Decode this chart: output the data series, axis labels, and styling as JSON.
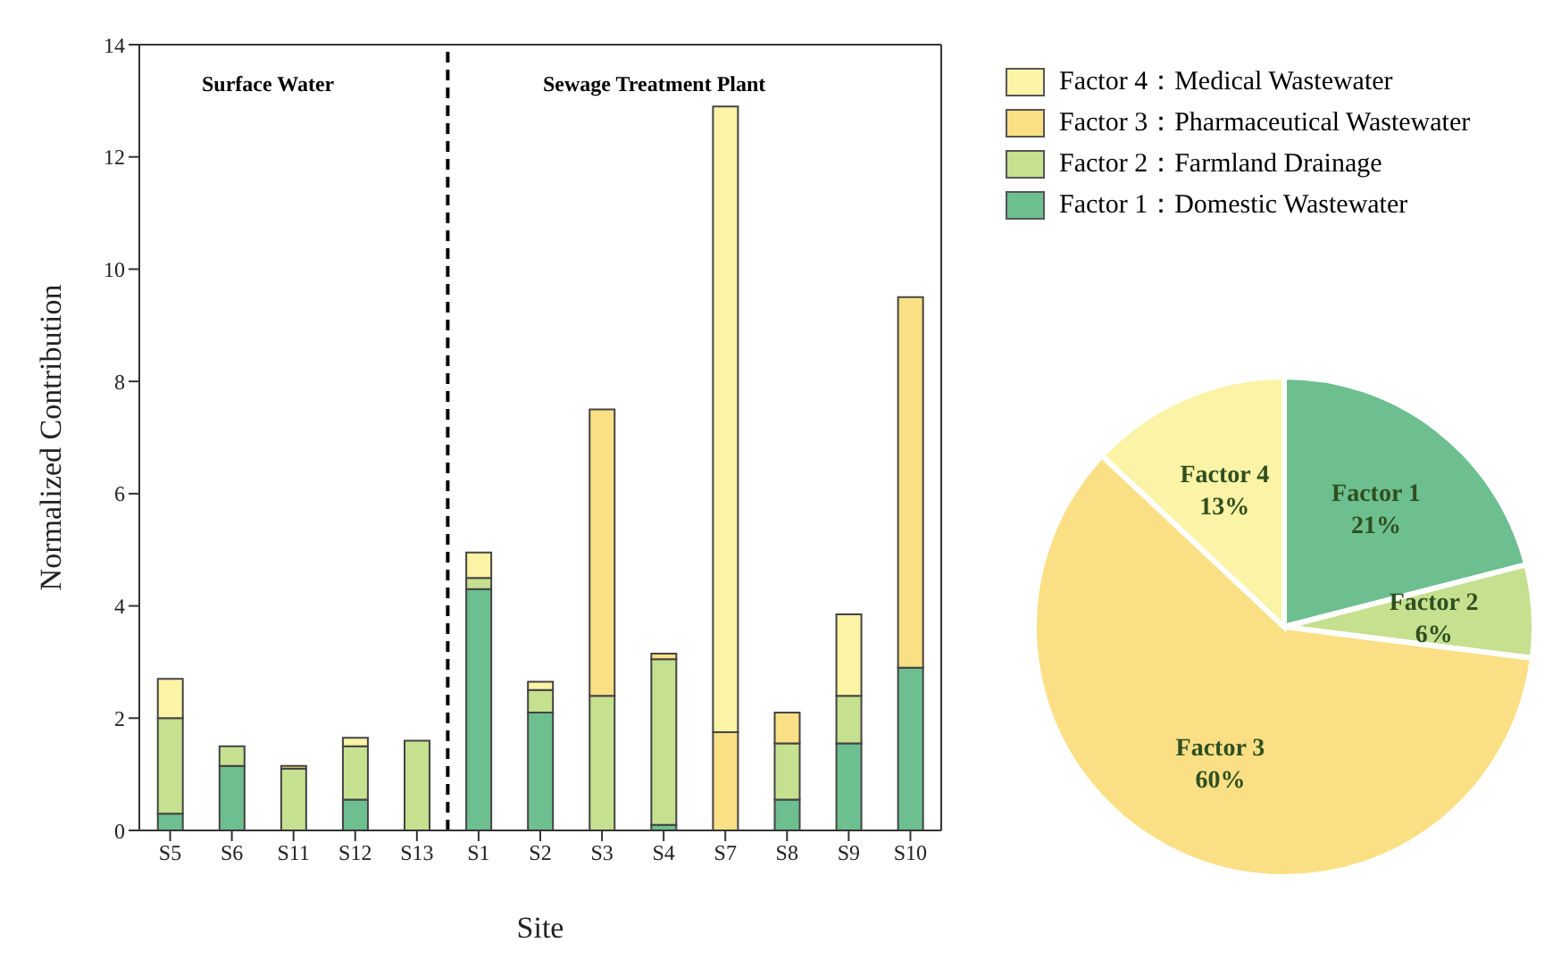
{
  "chart_data": [
    {
      "type": "bar",
      "stacked": true,
      "xlabel": "Site",
      "ylabel": "Normalized Contribution",
      "categories": [
        "S5",
        "S6",
        "S11",
        "S12",
        "S13",
        "S1",
        "S2",
        "S3",
        "S4",
        "S7",
        "S8",
        "S9",
        "S10"
      ],
      "ylim": [
        0,
        14
      ],
      "yticks": [
        0,
        2,
        4,
        6,
        8,
        10,
        12,
        14
      ],
      "legend": "right",
      "grid": false,
      "series": [
        {
          "name": "Factor 1：Domestic Wastewater",
          "color": "#6dbf8f",
          "values": [
            0.3,
            1.15,
            0,
            0.55,
            0,
            4.3,
            2.1,
            0,
            0.1,
            0,
            0.55,
            1.55,
            2.9
          ]
        },
        {
          "name": "Factor 2：Farmland Drainage",
          "color": "#c5e08f",
          "values": [
            1.7,
            0.35,
            1.1,
            0.95,
            1.6,
            0.2,
            0.4,
            2.4,
            2.95,
            0,
            1.0,
            0.85,
            0
          ]
        },
        {
          "name": "Factor 3：Pharmaceutical Wastewater",
          "color": "#fadf85",
          "values": [
            0,
            0,
            0.05,
            0,
            0,
            0,
            0,
            5.1,
            0.1,
            1.75,
            0.55,
            0,
            6.6
          ]
        },
        {
          "name": "Factor 4：Medical Wastewater",
          "color": "#fbf3a5",
          "values": [
            0.7,
            0,
            0,
            0.15,
            0,
            0.45,
            0.15,
            0,
            0,
            11.15,
            0,
            1.45,
            0
          ]
        }
      ],
      "annotations": [
        "Surface Water",
        "Sewage Treatment Plant"
      ]
    },
    {
      "type": "pie",
      "categories": [
        "Factor 1",
        "Factor 2",
        "Factor 3",
        "Factor 4"
      ],
      "values": [
        21,
        6,
        60,
        13
      ],
      "colors": [
        "#6dbf8f",
        "#c5e08f",
        "#fadf85",
        "#fbf3a5"
      ],
      "value_labels": [
        "21%",
        "6%",
        "60%",
        "13%"
      ]
    }
  ]
}
